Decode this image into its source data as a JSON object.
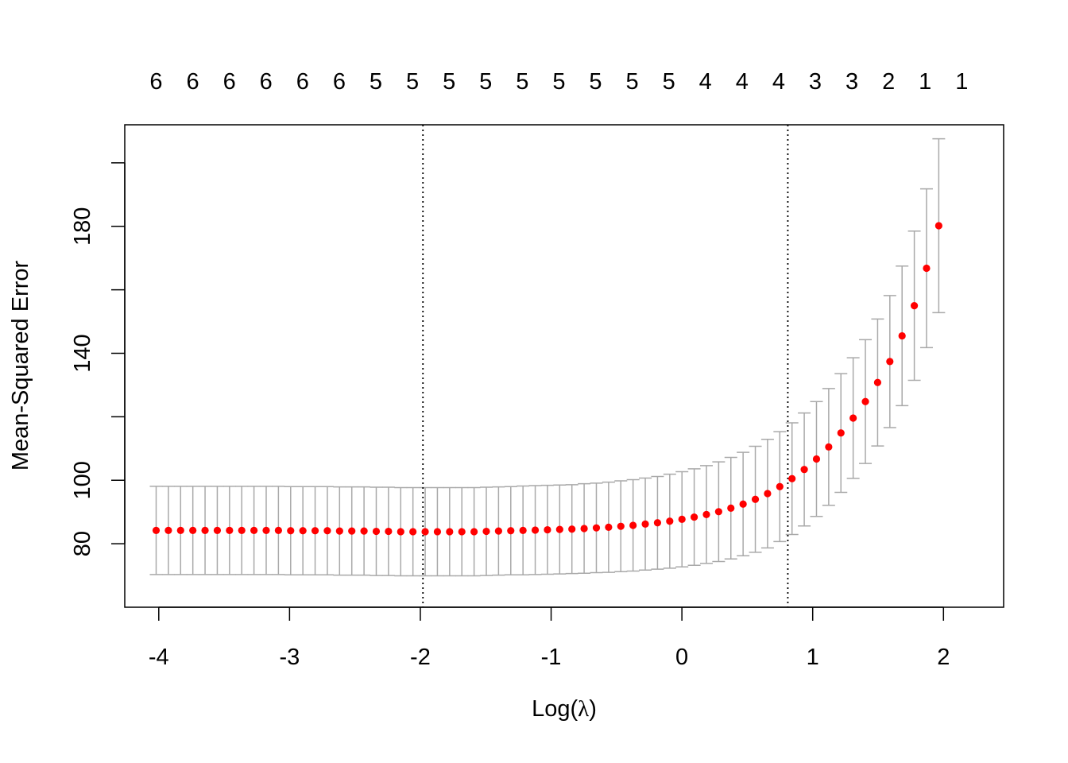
{
  "chart_data": {
    "type": "scatter",
    "title": "",
    "xlabel_prefix": "Log(",
    "xlabel_symbol": "λ",
    "xlabel_suffix": ")",
    "ylabel": "Mean-Squared Error",
    "xlim": [
      -4.26,
      2.46
    ],
    "ylim": [
      60,
      212
    ],
    "x_ticks": [
      -4,
      -3,
      -2,
      -1,
      0,
      1,
      2
    ],
    "x_tick_labels": [
      "-4",
      "-3",
      "-2",
      "-1",
      "0",
      "1",
      "2"
    ],
    "y_ticks": [
      80,
      100,
      140,
      180
    ],
    "y_tick_labels": [
      "80",
      "100",
      "140",
      "180"
    ],
    "y_minor_ticks": [
      120,
      160,
      200
    ],
    "top_axis_positions": [
      -4.02,
      -3.74,
      -3.46,
      -3.18,
      -2.9,
      -2.62,
      -2.34,
      -2.06,
      -1.78,
      -1.5,
      -1.22,
      -0.94,
      -0.66,
      -0.38,
      -0.1,
      0.18,
      0.46,
      0.74,
      1.02,
      1.3,
      1.58,
      1.86,
      2.14
    ],
    "top_axis_labels": [
      "6",
      "6",
      "6",
      "6",
      "6",
      "6",
      "5",
      "5",
      "5",
      "5",
      "5",
      "5",
      "5",
      "5",
      "5",
      "4",
      "4",
      "4",
      "3",
      "3",
      "2",
      "1",
      "1"
    ],
    "vlines": [
      -1.98,
      0.81
    ],
    "x_start": -4.02,
    "x_step": 0.0935,
    "mse": [
      84.2,
      84.2,
      84.2,
      84.2,
      84.2,
      84.2,
      84.2,
      84.2,
      84.2,
      84.2,
      84.2,
      84.1,
      84.1,
      84.1,
      84.1,
      84.0,
      84.0,
      84.0,
      83.9,
      83.9,
      83.8,
      83.8,
      83.8,
      83.8,
      83.8,
      83.8,
      83.8,
      83.9,
      84.0,
      84.1,
      84.2,
      84.3,
      84.4,
      84.5,
      84.6,
      84.8,
      85.0,
      85.2,
      85.5,
      85.8,
      86.2,
      86.6,
      87.1,
      87.7,
      88.4,
      89.2,
      90.1,
      91.2,
      92.5,
      94.0,
      95.8,
      98.0,
      100.5,
      103.4,
      106.7,
      110.5,
      114.9,
      119.6,
      124.8,
      130.8,
      137.4,
      145.5,
      155.0,
      166.8,
      180.2
    ],
    "se": [
      13.9,
      13.9,
      13.9,
      13.9,
      13.9,
      13.9,
      13.9,
      13.9,
      13.9,
      13.9,
      13.9,
      13.9,
      13.9,
      13.9,
      13.9,
      13.9,
      13.9,
      13.9,
      13.9,
      13.9,
      13.9,
      13.9,
      13.9,
      13.9,
      13.9,
      13.9,
      13.9,
      13.9,
      13.9,
      13.9,
      14.0,
      14.0,
      14.0,
      14.0,
      14.0,
      14.1,
      14.1,
      14.2,
      14.3,
      14.4,
      14.5,
      14.6,
      14.8,
      15.0,
      15.2,
      15.4,
      15.7,
      16.0,
      16.3,
      16.7,
      17.1,
      17.3,
      17.6,
      17.8,
      18.1,
      18.4,
      18.7,
      19.0,
      19.5,
      20.0,
      20.8,
      22.0,
      23.5,
      25.0,
      27.4
    ],
    "point_color": "#FF0000",
    "errorbar_color": "#A9A9A9",
    "grid": false,
    "legend": "none"
  }
}
